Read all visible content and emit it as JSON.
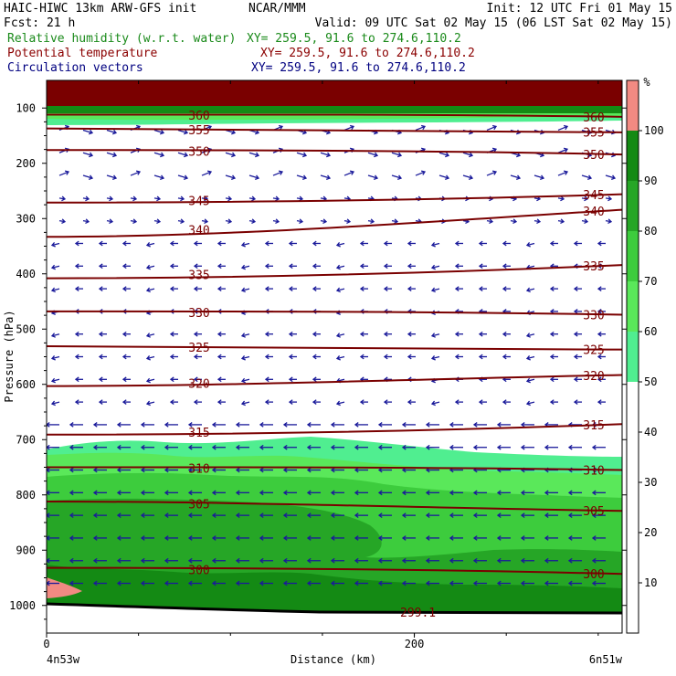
{
  "header": {
    "model": "HAIC-HIWC 13km ARW-GFS init",
    "org": "NCAR/MMM",
    "init": "Init: 12 UTC Fri 01 May 15",
    "fcst": "Fcst:   21 h",
    "valid": "Valid: 09 UTC Sat 02 May 15 (06 LST Sat 02 May 15)"
  },
  "fields": [
    {
      "label": "Relative humidity (w.r.t. water)",
      "xy": "XY= 259.5, 91.6 to 274.6,110.2",
      "color": "#1a8a1a"
    },
    {
      "label": "Potential temperature",
      "xy": "XY= 259.5, 91.6 to 274.6,110.2",
      "color": "#8b0000"
    },
    {
      "label": "Circulation vectors",
      "xy": "XY= 259.5, 91.6 to 274.6,110.2",
      "color": "#000080"
    }
  ],
  "chart_data": {
    "type": "heatmap",
    "xlabel": "Distance (km)",
    "ylabel": "Pressure (hPa)",
    "x_ticks": [
      0,
      200
    ],
    "x_range": [
      0,
      313
    ],
    "y_ticks": [
      100,
      200,
      300,
      400,
      500,
      600,
      700,
      800,
      900,
      1000
    ],
    "y_range": [
      1050,
      50
    ],
    "left_endpoint": "4n53w",
    "right_endpoint": "6n51w",
    "colorbar": {
      "unit": "%",
      "ticks": [
        10,
        20,
        30,
        40,
        50,
        60,
        70,
        80,
        90,
        100
      ],
      "bands": [
        {
          "from": 50,
          "to": 60,
          "color": "#50ee90"
        },
        {
          "from": 60,
          "to": 70,
          "color": "#5ae85a"
        },
        {
          "from": 70,
          "to": 80,
          "color": "#3dcc3d"
        },
        {
          "from": 80,
          "to": 90,
          "color": "#26a626"
        },
        {
          "from": 90,
          "to": 100,
          "color": "#148a14"
        },
        {
          "from": 100,
          "to": 110,
          "color": "#f28a82"
        }
      ]
    },
    "theta_levels": [
      {
        "label": "300",
        "p_left": 932,
        "p_right": 943
      },
      {
        "label": "305",
        "p_left": 812,
        "p_right": 829
      },
      {
        "label": "310",
        "p_left": 750,
        "p_right": 755
      },
      {
        "label": "315",
        "p_left": 691,
        "p_right": 672
      },
      {
        "label": "320",
        "p_left": 603,
        "p_right": 583
      },
      {
        "label": "325",
        "p_left": 531,
        "p_right": 537
      },
      {
        "label": "330",
        "p_left": 468,
        "p_right": 474
      },
      {
        "label": "335",
        "p_left": 408,
        "p_right": 384
      },
      {
        "label": "340",
        "p_left": 333,
        "p_right": 284
      },
      {
        "label": "345",
        "p_left": 271,
        "p_right": 256
      },
      {
        "label": "350",
        "p_left": 176,
        "p_right": 184
      },
      {
        "label": "355",
        "p_left": 137,
        "p_right": 144
      },
      {
        "label": "360",
        "p_left": 112,
        "p_right": 116
      }
    ],
    "surface_label": "299.1"
  }
}
